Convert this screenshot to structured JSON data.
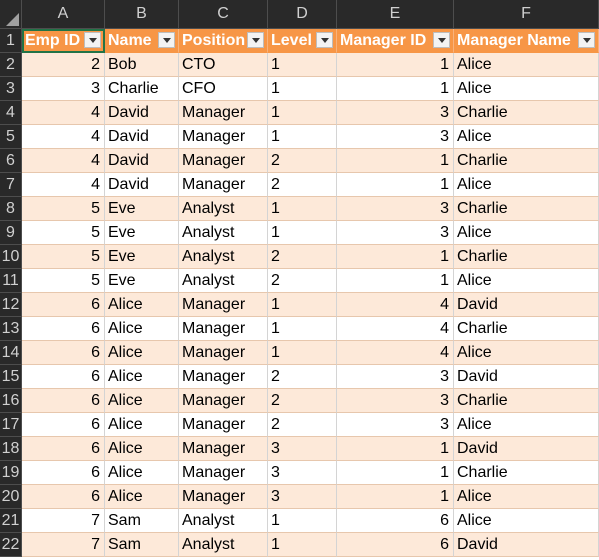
{
  "sheet": {
    "columns": [
      "A",
      "B",
      "C",
      "D",
      "E",
      "F"
    ],
    "table_headers": [
      "Emp ID",
      "Name",
      "Position",
      "Level",
      "Manager ID",
      "Manager Name"
    ],
    "rows": [
      {
        "row": "2",
        "emp_id": "2",
        "name": "Bob",
        "position": "CTO",
        "level": "1",
        "manager_id": "1",
        "manager_name": "Alice"
      },
      {
        "row": "3",
        "emp_id": "3",
        "name": "Charlie",
        "position": "CFO",
        "level": "1",
        "manager_id": "1",
        "manager_name": "Alice"
      },
      {
        "row": "4",
        "emp_id": "4",
        "name": "David",
        "position": "Manager",
        "level": "1",
        "manager_id": "3",
        "manager_name": "Charlie"
      },
      {
        "row": "5",
        "emp_id": "4",
        "name": "David",
        "position": "Manager",
        "level": "1",
        "manager_id": "3",
        "manager_name": "Alice"
      },
      {
        "row": "6",
        "emp_id": "4",
        "name": "David",
        "position": "Manager",
        "level": "2",
        "manager_id": "1",
        "manager_name": "Charlie"
      },
      {
        "row": "7",
        "emp_id": "4",
        "name": "David",
        "position": "Manager",
        "level": "2",
        "manager_id": "1",
        "manager_name": "Alice"
      },
      {
        "row": "8",
        "emp_id": "5",
        "name": "Eve",
        "position": "Analyst",
        "level": "1",
        "manager_id": "3",
        "manager_name": "Charlie"
      },
      {
        "row": "9",
        "emp_id": "5",
        "name": "Eve",
        "position": "Analyst",
        "level": "1",
        "manager_id": "3",
        "manager_name": "Alice"
      },
      {
        "row": "10",
        "emp_id": "5",
        "name": "Eve",
        "position": "Analyst",
        "level": "2",
        "manager_id": "1",
        "manager_name": "Charlie"
      },
      {
        "row": "11",
        "emp_id": "5",
        "name": "Eve",
        "position": "Analyst",
        "level": "2",
        "manager_id": "1",
        "manager_name": "Alice"
      },
      {
        "row": "12",
        "emp_id": "6",
        "name": "Alice",
        "position": "Manager",
        "level": "1",
        "manager_id": "4",
        "manager_name": "David"
      },
      {
        "row": "13",
        "emp_id": "6",
        "name": "Alice",
        "position": "Manager",
        "level": "1",
        "manager_id": "4",
        "manager_name": "Charlie"
      },
      {
        "row": "14",
        "emp_id": "6",
        "name": "Alice",
        "position": "Manager",
        "level": "1",
        "manager_id": "4",
        "manager_name": "Alice"
      },
      {
        "row": "15",
        "emp_id": "6",
        "name": "Alice",
        "position": "Manager",
        "level": "2",
        "manager_id": "3",
        "manager_name": "David"
      },
      {
        "row": "16",
        "emp_id": "6",
        "name": "Alice",
        "position": "Manager",
        "level": "2",
        "manager_id": "3",
        "manager_name": "Charlie"
      },
      {
        "row": "17",
        "emp_id": "6",
        "name": "Alice",
        "position": "Manager",
        "level": "2",
        "manager_id": "3",
        "manager_name": "Alice"
      },
      {
        "row": "18",
        "emp_id": "6",
        "name": "Alice",
        "position": "Manager",
        "level": "3",
        "manager_id": "1",
        "manager_name": "David"
      },
      {
        "row": "19",
        "emp_id": "6",
        "name": "Alice",
        "position": "Manager",
        "level": "3",
        "manager_id": "1",
        "manager_name": "Charlie"
      },
      {
        "row": "20",
        "emp_id": "6",
        "name": "Alice",
        "position": "Manager",
        "level": "3",
        "manager_id": "1",
        "manager_name": "Alice"
      },
      {
        "row": "21",
        "emp_id": "7",
        "name": "Sam",
        "position": "Analyst",
        "level": "1",
        "manager_id": "6",
        "manager_name": "Alice"
      },
      {
        "row": "22",
        "emp_id": "7",
        "name": "Sam",
        "position": "Analyst",
        "level": "1",
        "manager_id": "6",
        "manager_name": "David"
      }
    ],
    "colors": {
      "header_fill": "#f79646",
      "band_fill": "#fde9d9",
      "chrome": "#292929",
      "selection": "#217346"
    }
  }
}
